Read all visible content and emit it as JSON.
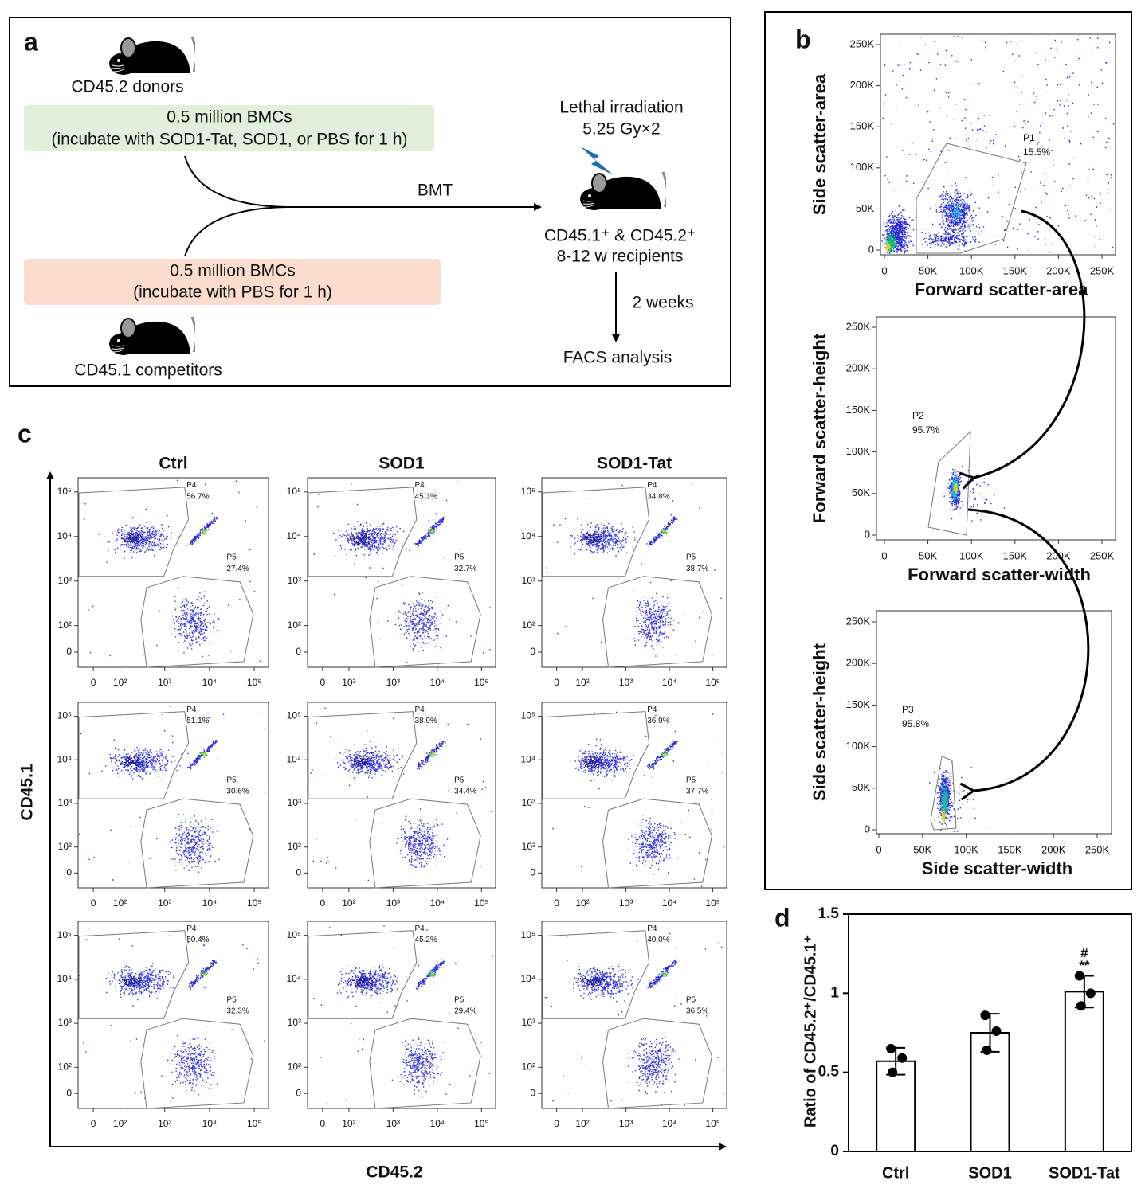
{
  "panel_a": {
    "label": "a",
    "donors": "CD45.2 donors",
    "competitors": "CD45.1 competitors",
    "donor_box": [
      "0.5 million BMCs",
      "(incubate with SOD1-Tat, SOD1, or PBS for 1 h)"
    ],
    "competitor_box": [
      "0.5 million BMCs",
      "(incubate with PBS for 1 h)"
    ],
    "transplant": "BMT",
    "irradiation": [
      "Lethal irradiation",
      "5.25 Gy×2"
    ],
    "recipients": [
      "CD45.1⁺ & CD45.2⁺",
      "8-12 w recipients"
    ],
    "interval": "2 weeks",
    "analysis": "FACS analysis"
  },
  "panel_b": {
    "label": "b",
    "ticks": [
      {
        "value": 0,
        "label": "0"
      },
      {
        "value": 50000,
        "label": "50K"
      },
      {
        "value": 100000,
        "label": "100K"
      },
      {
        "value": 150000,
        "label": "150K"
      },
      {
        "value": 200000,
        "label": "200K"
      },
      {
        "value": 250000,
        "label": "250K"
      }
    ],
    "plots": [
      {
        "x_label": "Forward scatter-area",
        "y_label": "Side scatter-area",
        "gate": "P1",
        "percent": "15.5%"
      },
      {
        "x_label": "Forward scatter-width",
        "y_label": "Forward scatter-height",
        "gate": "P2",
        "percent": "95.7%"
      },
      {
        "x_label": "Side scatter-width",
        "y_label": "Side scatter-height",
        "gate": "P3",
        "percent": "95.8%"
      }
    ]
  },
  "panel_c": {
    "label": "c",
    "x_label": "CD45.2",
    "y_label": "CD45.1",
    "columns": [
      "Ctrl",
      "SOD1",
      "SOD1-Tat"
    ],
    "gates": [
      "P4",
      "P5"
    ],
    "ticks": [
      {
        "value": 0,
        "label": "0"
      },
      {
        "value": 100,
        "label": "10²"
      },
      {
        "value": 1000,
        "label": "10³"
      },
      {
        "value": 10000,
        "label": "10⁴"
      },
      {
        "value": 100000,
        "label": "10⁵"
      }
    ],
    "rows": [
      [
        [
          "56.7%",
          "27.4%"
        ],
        [
          "45.3%",
          "32.7%"
        ],
        [
          "34.8%",
          "38.7%"
        ]
      ],
      [
        [
          "51.1%",
          "30.6%"
        ],
        [
          "38.9%",
          "34.4%"
        ],
        [
          "36.9%",
          "37.7%"
        ]
      ],
      [
        [
          "50.4%",
          "32.3%"
        ],
        [
          "45.2%",
          "29.4%"
        ],
        [
          "40.0%",
          "36.5%"
        ]
      ]
    ]
  },
  "chart_data": {
    "type": "bar",
    "panel_label": "d",
    "categories": [
      "Ctrl",
      "SOD1",
      "SOD1-Tat"
    ],
    "values": [
      0.57,
      0.75,
      1.01
    ],
    "errors": [
      0.085,
      0.12,
      0.1
    ],
    "points": [
      [
        0.65,
        0.59,
        0.5
      ],
      [
        0.86,
        0.76,
        0.64
      ],
      [
        1.11,
        1.0,
        0.92
      ]
    ],
    "ylabel": "Ratio of CD45.2⁺/CD45.1⁺",
    "ylim": [
      0,
      1.5
    ],
    "yticks": [
      0,
      0.5,
      1,
      1.5
    ],
    "color": "#ffffff",
    "annotation": {
      "category": "SOD1-Tat",
      "text": [
        "#",
        "**"
      ]
    }
  }
}
